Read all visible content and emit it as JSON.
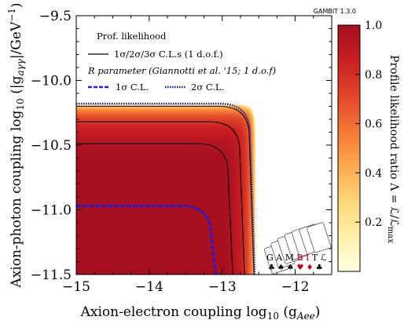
{
  "badge": "GAMBIT 1.3.0",
  "chart_data": {
    "type": "heatmap",
    "xlabel": "Axion-electron coupling log₁₀ (g_Aee)",
    "ylabel": "Axion-photon coupling log₁₀ (|g_aγγ|/GeV⁻¹)",
    "xlim": [
      -15.0,
      -11.5
    ],
    "ylim": [
      -11.5,
      -9.5
    ],
    "x_ticks": [
      -15,
      -14,
      -13,
      -12
    ],
    "x_tick_labels": [
      "−15",
      "−14",
      "−13",
      "−12"
    ],
    "y_ticks": [
      -11.5,
      -11.0,
      -10.5,
      -10.0,
      -9.5
    ],
    "y_tick_labels": [
      "−11.5",
      "−11.0",
      "−10.5",
      "−10.0",
      "−9.5"
    ],
    "colorbar": {
      "label": "Profile likelihood ratio Λ = ℒ/ℒ_max",
      "range": [
        0.0,
        1.0
      ],
      "ticks": [
        0.2,
        0.4,
        0.6,
        0.8,
        1.0
      ],
      "tick_labels": [
        "0.2",
        "0.4",
        "0.6",
        "0.8",
        "1.0"
      ],
      "colormap": [
        "#fffde3",
        "#fff0a8",
        "#fdd67a",
        "#fca94e",
        "#f57736",
        "#e2452a",
        "#c81e22",
        "#a50f1f"
      ]
    },
    "surface": {
      "description_model": "likelihood drops to zero when combined coupling exceeds limit",
      "y_limit": -10.18,
      "x_limit": -12.55
    },
    "legend": {
      "heading": "Prof. likelihood",
      "contours_label": "1σ/2σ/3σ C.L.s (1 d.o.f.)",
      "r_heading": "R parameter (Giannotti et al. '15; 1 d.o.f)",
      "r_1sigma": "1σ C.L.",
      "r_2sigma": "2σ C.L."
    },
    "series": [
      {
        "name": "1σ C.L.",
        "style": "R-1sigma",
        "x_knee": -13.15,
        "y_flat": -10.97,
        "color": "#1a1ae6"
      },
      {
        "name": "2σ C.L.",
        "style": "R-2sigma",
        "x_knee": -12.62,
        "y_flat": -10.18,
        "color": "#1a1aa0"
      }
    ],
    "contours": [
      {
        "level": "1σ",
        "x_knee": -12.92,
        "y_flat": -10.49
      },
      {
        "level": "2σ",
        "x_knee": -12.76,
        "y_flat": -10.32
      },
      {
        "level": "3σ",
        "x_knee": -12.63,
        "y_flat": -10.2
      }
    ]
  }
}
